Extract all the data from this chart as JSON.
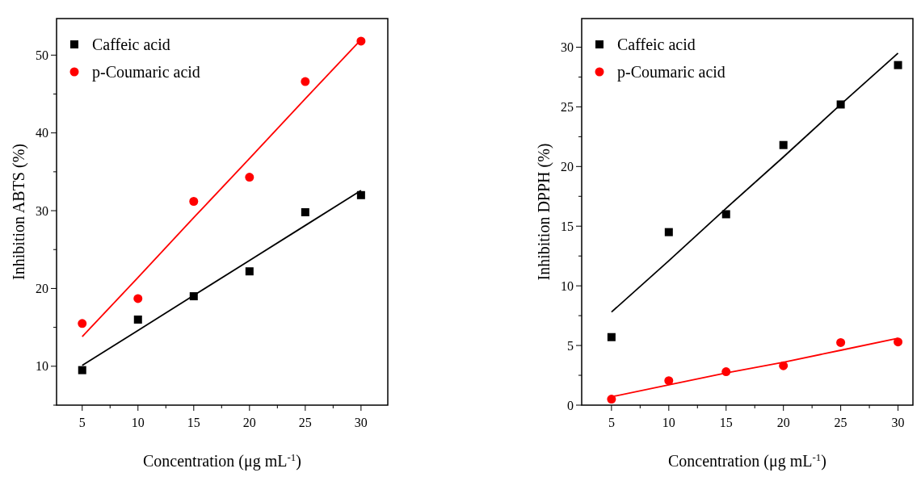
{
  "chart_data": [
    {
      "type": "scatter",
      "xlabel": "Concentration (μg mL$^{-1}$)",
      "ylabel": "Inhibition ABTS (%)",
      "x": [
        5,
        10,
        15,
        20,
        25,
        30
      ],
      "xlim": [
        2.7,
        32.4
      ],
      "ylim": [
        5,
        54.7
      ],
      "xticks": [
        5,
        {
          "value": 7.5,
          "label": null
        },
        10,
        {
          "value": 12.5,
          "label": null
        },
        15,
        {
          "value": 17.5,
          "label": null
        },
        20,
        {
          "value": 22.5,
          "label": null
        },
        25,
        {
          "value": 27.5,
          "label": null
        },
        30
      ],
      "yticks": [
        {
          "value": 5,
          "label": null
        },
        10,
        {
          "value": 15,
          "label": null
        },
        20,
        {
          "value": 25,
          "label": null
        },
        30,
        {
          "value": 35,
          "label": null
        },
        40,
        {
          "value": 45,
          "label": null
        },
        50
      ],
      "legend": "top left",
      "grid": false,
      "series": [
        {
          "name": "Caffeic acid",
          "color": "#000000",
          "marker": "square",
          "values": [
            9.5,
            16,
            19,
            22.2,
            29.8,
            32
          ]
        },
        {
          "name": "p-Coumaric acid",
          "color": "#ff0000",
          "marker": "circle",
          "values": [
            15.5,
            18.7,
            31.2,
            34.3,
            46.6,
            51.8
          ]
        },
        {
          "type": "line",
          "color": "#000000",
          "marker": "none",
          "values": [
            10.1,
            14.6,
            19.1,
            23.6,
            28.1,
            32.6
          ]
        },
        {
          "type": "line",
          "color": "#ff0000",
          "marker": "none",
          "values": [
            13.8,
            21.4,
            29.1,
            36.7,
            44.4,
            52
          ]
        }
      ]
    },
    {
      "type": "scatter",
      "xlabel": "Concentration (μg mL$^{-1}$)",
      "ylabel": "Inhibition DPPH (%)",
      "x": [
        5,
        10,
        15,
        20,
        25,
        30
      ],
      "xlim": [
        2.4,
        31.3
      ],
      "ylim": [
        0,
        32.4
      ],
      "xticks": [
        5,
        {
          "value": 7.5,
          "label": null
        },
        10,
        {
          "value": 12.5,
          "label": null
        },
        15,
        {
          "value": 17.5,
          "label": null
        },
        20,
        {
          "value": 22.5,
          "label": null
        },
        25,
        {
          "value": 27.5,
          "label": null
        },
        30
      ],
      "yticks": [
        0,
        {
          "value": 2.5,
          "label": null
        },
        5,
        {
          "value": 7.5,
          "label": null
        },
        10,
        {
          "value": 12.5,
          "label": null
        },
        15,
        {
          "value": 17.5,
          "label": null
        },
        20,
        {
          "value": 22.5,
          "label": null
        },
        25,
        {
          "value": 27.5,
          "label": null
        },
        30
      ],
      "legend": "top left",
      "grid": false,
      "series": [
        {
          "name": "Caffeic acid",
          "color": "#000000",
          "marker": "square",
          "values": [
            5.7,
            14.5,
            16,
            21.8,
            25.2,
            28.5
          ]
        },
        {
          "name": "p-Coumaric acid",
          "color": "#ff0000",
          "marker": "circle",
          "values": [
            0.5,
            2.05,
            2.8,
            3.3,
            5.25,
            5.3
          ]
        },
        {
          "type": "line",
          "color": "#000000",
          "marker": "none",
          "values": [
            7.8,
            12.1,
            16.5,
            20.8,
            25.2,
            29.5
          ]
        },
        {
          "type": "line",
          "color": "#ff0000",
          "marker": "none",
          "values": [
            0.7,
            1.7,
            2.7,
            3.6,
            4.6,
            5.6
          ]
        }
      ]
    }
  ]
}
